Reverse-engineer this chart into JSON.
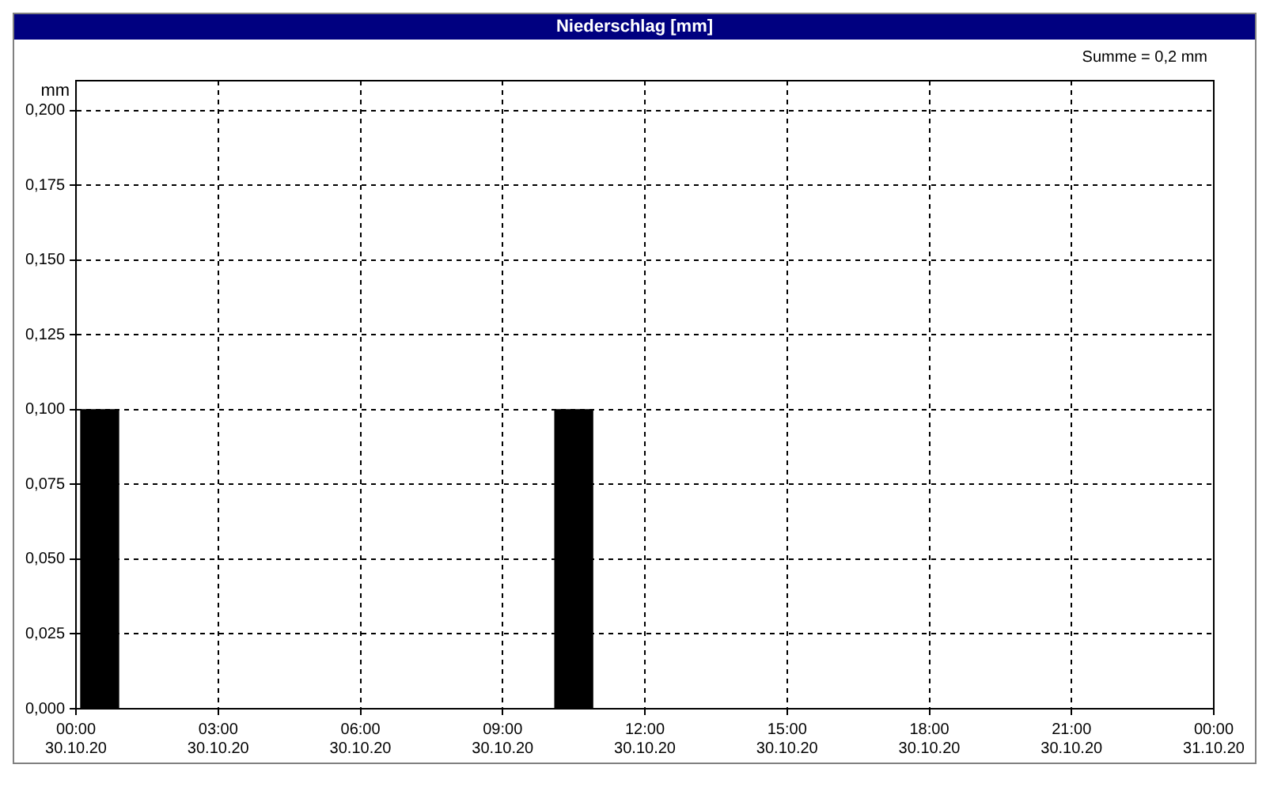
{
  "chart_data": {
    "type": "bar",
    "title": "Niederschlag [mm]",
    "ylabel": "mm",
    "annotations": [
      "Summe = 0,2 mm"
    ],
    "x": [
      "--10-30T00:30",
      "--10-30T10:30"
    ],
    "values": [
      0.1,
      0.1
    ],
    "color": "#000000",
    "xlim": [
      "--10-30T00:00",
      "--10-31T00:00"
    ],
    "xticks": [
      {
        "value": "--10-30T00:00",
        "label": "00:00\n30.10.20"
      },
      {
        "value": "--10-30T03:00",
        "label": "03:00\n30.10.20"
      },
      {
        "value": "--10-30T06:00",
        "label": "06:00\n30.10.20"
      },
      {
        "value": "--10-30T09:00",
        "label": "09:00\n30.10.20"
      },
      {
        "value": "--10-30T12:00",
        "label": "12:00\n30.10.20"
      },
      {
        "value": "--10-30T15:00",
        "label": "15:00\n30.10.20"
      },
      {
        "value": "--10-30T18:00",
        "label": "18:00\n30.10.20"
      },
      {
        "value": "--10-30T21:00",
        "label": "21:00\n30.10.20"
      },
      {
        "value": "--10-31T00:00",
        "label": "00:00\n31.10.20"
      }
    ],
    "ylim": [
      0,
      0.21
    ],
    "yticks": [
      {
        "value": 0,
        "label": "0,000"
      },
      {
        "value": 0.025,
        "label": "0,025"
      },
      {
        "value": 0.05,
        "label": "0,050"
      },
      {
        "value": 0.075,
        "label": "0,075"
      },
      {
        "value": 0.1,
        "label": "0,100"
      },
      {
        "value": 0.125,
        "label": "0,125"
      },
      {
        "value": 0.15,
        "label": "0,150"
      },
      {
        "value": 0.175,
        "label": "0,175"
      },
      {
        "value": 0.2,
        "label": "0,200"
      }
    ],
    "grid": true
  }
}
